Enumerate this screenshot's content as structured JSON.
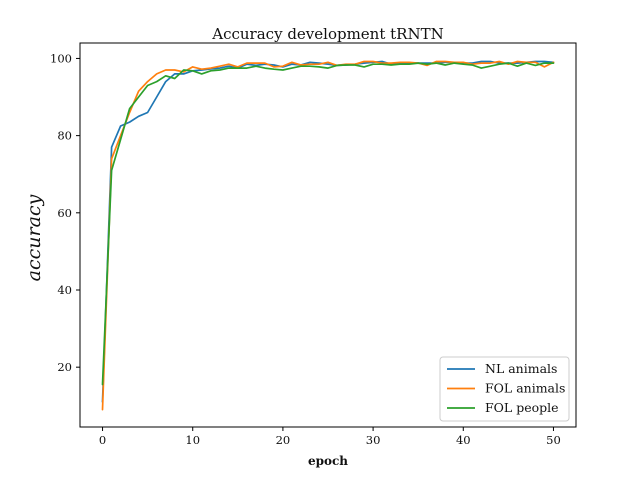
{
  "chart_data": {
    "type": "line",
    "title": "Accuracy development tRNTN",
    "xlabel": "epoch",
    "ylabel": "accuracy",
    "xlim": [
      -2.5,
      52.5
    ],
    "ylim": [
      4.5,
      104
    ],
    "xticks": [
      0,
      10,
      20,
      30,
      40,
      50
    ],
    "yticks": [
      20,
      40,
      60,
      80,
      100
    ],
    "grid": false,
    "legend_position": "lower right",
    "x": [
      0,
      1,
      2,
      3,
      4,
      5,
      6,
      7,
      8,
      9,
      10,
      11,
      12,
      13,
      14,
      15,
      16,
      17,
      18,
      19,
      20,
      21,
      22,
      23,
      24,
      25,
      26,
      27,
      28,
      29,
      30,
      31,
      32,
      33,
      34,
      35,
      36,
      37,
      38,
      39,
      40,
      41,
      42,
      43,
      44,
      45,
      46,
      47,
      48,
      49,
      50
    ],
    "series": [
      {
        "name": "NL animals",
        "color": "#1f77b4",
        "values": [
          11,
          77,
          82.5,
          83.5,
          85,
          86,
          90,
          94,
          96,
          96,
          96.8,
          97,
          97.3,
          97.5,
          98,
          97.5,
          98.5,
          98.2,
          98.5,
          98.3,
          97.8,
          98.5,
          98.3,
          99,
          98.8,
          98.5,
          98.2,
          98.3,
          98.5,
          98.8,
          99,
          99.2,
          98.5,
          98.8,
          98.8,
          98.8,
          98.8,
          98.8,
          99,
          99,
          98.8,
          98.8,
          99.2,
          99.2,
          98.8,
          98.8,
          98.8,
          99,
          99.2,
          99.2,
          99
        ]
      },
      {
        "name": "FOL animals",
        "color": "#ff7f0e",
        "values": [
          9,
          74,
          80,
          86,
          91.5,
          94,
          96,
          97,
          97,
          96.5,
          97.8,
          97.2,
          97.5,
          98,
          98.5,
          97.8,
          98.8,
          98.8,
          98.8,
          97.8,
          98,
          99,
          98.3,
          98.5,
          98.5,
          99,
          98.2,
          98.5,
          98.5,
          99.2,
          99.2,
          98.8,
          98.8,
          99,
          99,
          98.8,
          98.2,
          99.2,
          99.2,
          99,
          99,
          98.5,
          98.8,
          98.8,
          99.2,
          98.5,
          99.2,
          99,
          99,
          97.8,
          99
        ]
      },
      {
        "name": "FOL people",
        "color": "#2ca02c",
        "values": [
          15.5,
          71,
          79,
          87,
          90,
          93,
          94,
          95.5,
          94.8,
          97,
          96.8,
          96,
          96.8,
          97,
          97.5,
          97.5,
          97.5,
          98,
          97.5,
          97.2,
          97,
          97.5,
          98,
          98,
          97.8,
          97.5,
          98.2,
          98.3,
          98.3,
          97.8,
          98.5,
          98.5,
          98.3,
          98.5,
          98.5,
          98.8,
          98.5,
          98.8,
          98.3,
          98.8,
          98.5,
          98.3,
          97.5,
          98,
          98.5,
          98.8,
          98,
          98.8,
          98.2,
          98.8,
          98.8
        ]
      }
    ]
  }
}
